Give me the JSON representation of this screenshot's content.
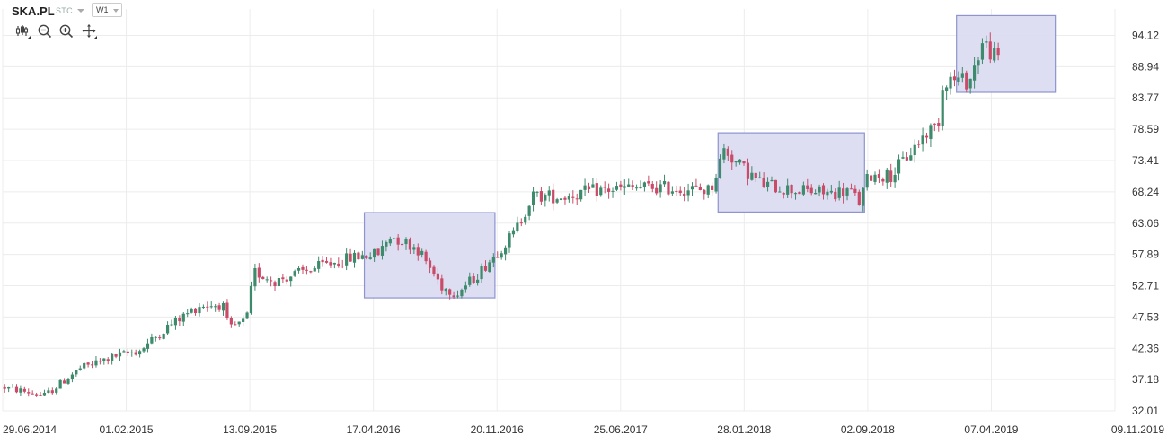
{
  "header": {
    "ticker": "SKA.PL",
    "chart_type": "STC",
    "interval": "W1",
    "tools": [
      "candlestick-options-icon",
      "zoom-out-icon",
      "zoom-in-icon",
      "pan-icon"
    ]
  },
  "colors": {
    "up": "#3d8a6c",
    "down": "#c94b68",
    "highlight_fill": "#dcdcf2",
    "highlight_stroke": "#8e94cf",
    "grid": "#ececec"
  },
  "chart_data": {
    "type": "candlestick",
    "y_ticks": [
      32.01,
      37.18,
      42.36,
      47.53,
      52.71,
      57.89,
      63.06,
      68.24,
      73.41,
      78.59,
      83.77,
      88.94,
      94.12
    ],
    "x_ticks": [
      "29.06.2014",
      "01.02.2015",
      "13.09.2015",
      "17.04.2016",
      "20.11.2016",
      "25.06.2017",
      "28.01.2018",
      "02.09.2018",
      "07.04.2019",
      "09.11.2019"
    ],
    "ylim": [
      32.01,
      98.5
    ],
    "x_range": [
      "2014-06-29",
      "2019-11-09"
    ],
    "grid": true,
    "highlights": [
      {
        "from": "2016-03-27",
        "to": "2016-11-12",
        "low": 50.7,
        "high": 64.8
      },
      {
        "from": "2017-12-10",
        "to": "2018-08-25",
        "low": 64.9,
        "high": 78.0
      },
      {
        "from": "2019-02-03",
        "to": "2019-07-27",
        "low": 84.7,
        "high": 97.4
      }
    ],
    "price_path": [
      [
        "2014-06-29",
        36.0
      ],
      [
        "2014-09-15",
        34.5
      ],
      [
        "2014-11-15",
        39.0
      ],
      [
        "2015-01-15",
        41.0
      ],
      [
        "2015-03-01",
        42.0
      ],
      [
        "2015-04-20",
        46.0
      ],
      [
        "2015-06-15",
        49.5
      ],
      [
        "2015-07-25",
        49.5
      ],
      [
        "2015-08-05",
        45.5
      ],
      [
        "2015-09-05",
        47.0
      ],
      [
        "2015-09-18",
        55.0
      ],
      [
        "2015-10-25",
        53.5
      ],
      [
        "2016-01-15",
        56.0
      ],
      [
        "2016-03-15",
        57.5
      ],
      [
        "2016-04-25",
        58.0
      ],
      [
        "2016-05-15",
        61.0
      ],
      [
        "2016-07-01",
        59.0
      ],
      [
        "2016-08-15",
        52.5
      ],
      [
        "2016-09-10",
        51.5
      ],
      [
        "2016-10-15",
        54.5
      ],
      [
        "2016-12-01",
        59.5
      ],
      [
        "2016-12-20",
        61.5
      ],
      [
        "2017-01-20",
        67.5
      ],
      [
        "2017-03-15",
        67.5
      ],
      [
        "2017-05-15",
        68.5
      ],
      [
        "2017-08-15",
        69.0
      ],
      [
        "2017-11-30",
        68.5
      ],
      [
        "2017-12-25",
        75.5
      ],
      [
        "2018-01-15",
        73.0
      ],
      [
        "2018-03-01",
        69.5
      ],
      [
        "2018-05-01",
        68.5
      ],
      [
        "2018-07-01",
        68.0
      ],
      [
        "2018-08-01",
        68.5
      ],
      [
        "2018-08-20",
        66.5
      ],
      [
        "2018-09-05",
        71.0
      ],
      [
        "2018-10-15",
        71.0
      ],
      [
        "2018-11-15",
        74.5
      ],
      [
        "2018-12-15",
        78.0
      ],
      [
        "2019-01-05",
        79.5
      ],
      [
        "2019-01-15",
        87.0
      ],
      [
        "2019-03-01",
        86.5
      ],
      [
        "2019-03-25",
        93.0
      ],
      [
        "2019-04-20",
        90.0
      ]
    ]
  },
  "axis": {
    "y_labels": [
      "32.01",
      "37.18",
      "42.36",
      "47.53",
      "52.71",
      "57.89",
      "63.06",
      "68.24",
      "73.41",
      "78.59",
      "83.77",
      "88.94",
      "94.12"
    ],
    "x_labels": [
      "29.06.2014",
      "01.02.2015",
      "13.09.2015",
      "17.04.2016",
      "20.11.2016",
      "25.06.2017",
      "28.01.2018",
      "02.09.2018",
      "07.04.2019",
      "09.11.2019"
    ]
  }
}
